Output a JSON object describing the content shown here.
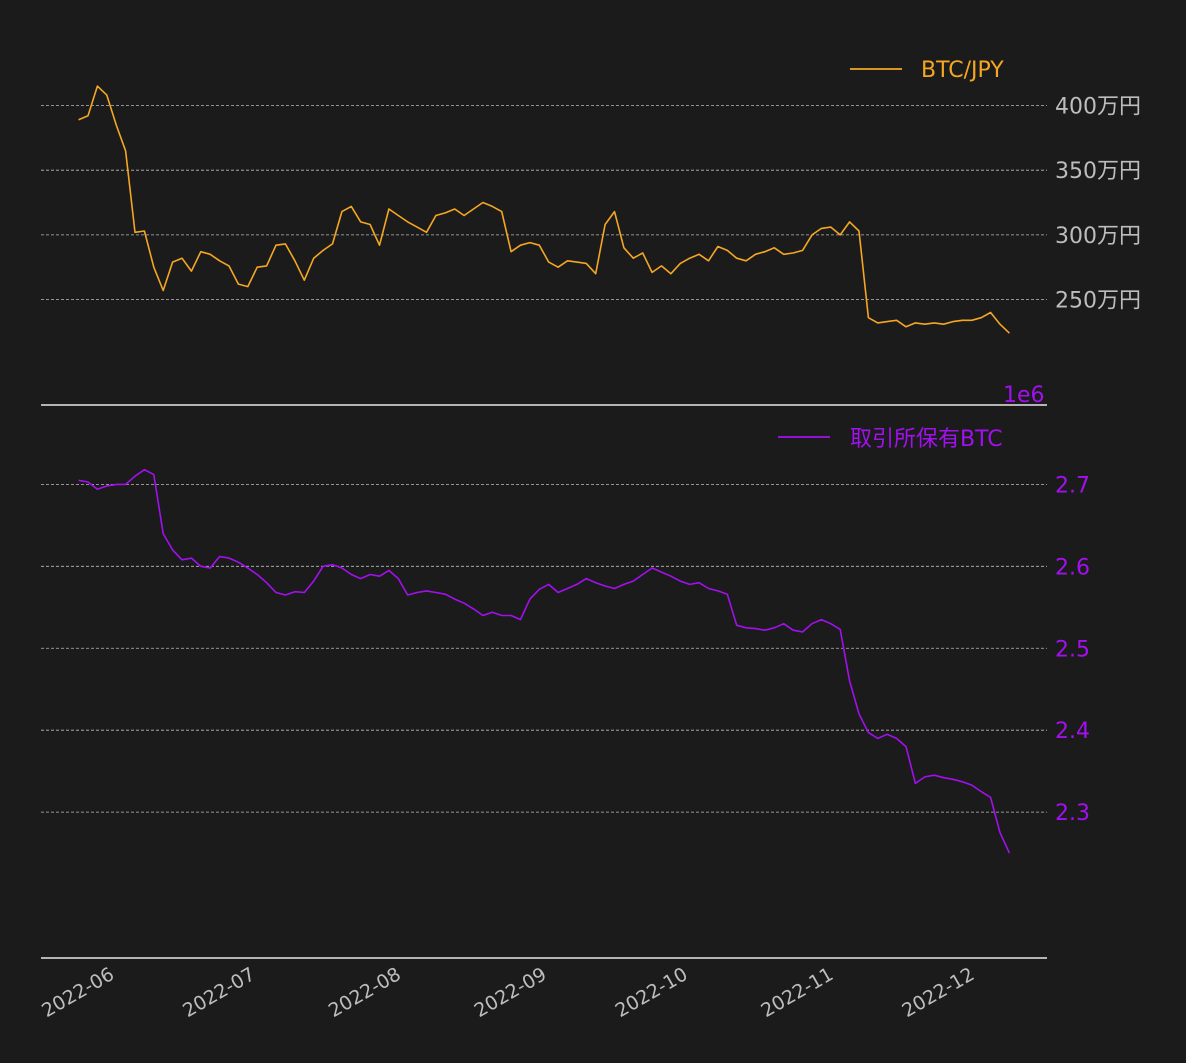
{
  "colors": {
    "background": "#1b1b1b",
    "price_line": "#f5a623",
    "holdings_line": "#a310f0",
    "tick_gray": "#bdbdbd"
  },
  "chart_data": [
    {
      "type": "line",
      "panel": "top",
      "series": [
        {
          "name": "BTC/JPY",
          "color": "#f5a623"
        }
      ],
      "y_tick_labels": [
        "400万円",
        "350万円",
        "300万円",
        "250万円"
      ],
      "y_ticks": [
        4000000,
        3500000,
        3000000,
        2500000
      ],
      "ylim": [
        2180000,
        4220000
      ],
      "x": [
        "2022-05-28",
        "2022-05-30",
        "2022-06-01",
        "2022-06-03",
        "2022-06-05",
        "2022-06-07",
        "2022-06-09",
        "2022-06-11",
        "2022-06-13",
        "2022-06-15",
        "2022-06-17",
        "2022-06-19",
        "2022-06-21",
        "2022-06-23",
        "2022-06-25",
        "2022-06-27",
        "2022-06-29",
        "2022-07-01",
        "2022-07-03",
        "2022-07-05",
        "2022-07-07",
        "2022-07-09",
        "2022-07-11",
        "2022-07-13",
        "2022-07-15",
        "2022-07-17",
        "2022-07-19",
        "2022-07-21",
        "2022-07-23",
        "2022-07-25",
        "2022-07-27",
        "2022-07-29",
        "2022-07-31",
        "2022-08-02",
        "2022-08-04",
        "2022-08-06",
        "2022-08-08",
        "2022-08-10",
        "2022-08-12",
        "2022-08-14",
        "2022-08-16",
        "2022-08-18",
        "2022-08-20",
        "2022-08-22",
        "2022-08-24",
        "2022-08-26",
        "2022-08-28",
        "2022-08-30",
        "2022-09-01",
        "2022-09-03",
        "2022-09-05",
        "2022-09-07",
        "2022-09-09",
        "2022-09-11",
        "2022-09-13",
        "2022-09-15",
        "2022-09-17",
        "2022-09-19",
        "2022-09-21",
        "2022-09-23",
        "2022-09-25",
        "2022-09-27",
        "2022-09-29",
        "2022-10-01",
        "2022-10-03",
        "2022-10-05",
        "2022-10-07",
        "2022-10-09",
        "2022-10-11",
        "2022-10-13",
        "2022-10-15",
        "2022-10-17",
        "2022-10-19",
        "2022-10-21",
        "2022-10-23",
        "2022-10-25",
        "2022-10-27",
        "2022-10-29",
        "2022-10-31",
        "2022-11-02",
        "2022-11-04",
        "2022-11-06",
        "2022-11-08",
        "2022-11-10",
        "2022-11-12",
        "2022-11-14",
        "2022-11-16",
        "2022-11-18",
        "2022-11-20",
        "2022-11-22",
        "2022-11-24",
        "2022-11-26",
        "2022-11-28",
        "2022-11-30",
        "2022-12-02",
        "2022-12-04",
        "2022-12-06",
        "2022-12-08",
        "2022-12-10",
        "2022-12-12"
      ],
      "y": [
        3890000,
        3920000,
        4150000,
        4080000,
        3850000,
        3650000,
        3020000,
        3030000,
        2750000,
        2570000,
        2790000,
        2820000,
        2720000,
        2870000,
        2850000,
        2800000,
        2760000,
        2620000,
        2600000,
        2750000,
        2760000,
        2920000,
        2930000,
        2800000,
        2650000,
        2820000,
        2880000,
        2930000,
        3180000,
        3220000,
        3100000,
        3080000,
        2920000,
        3200000,
        3150000,
        3100000,
        3060000,
        3020000,
        3150000,
        3170000,
        3200000,
        3150000,
        3200000,
        3250000,
        3220000,
        3180000,
        2870000,
        2920000,
        2940000,
        2920000,
        2790000,
        2750000,
        2800000,
        2790000,
        2780000,
        2700000,
        3080000,
        3180000,
        2900000,
        2820000,
        2860000,
        2710000,
        2760000,
        2700000,
        2780000,
        2820000,
        2850000,
        2800000,
        2910000,
        2880000,
        2820000,
        2800000,
        2850000,
        2870000,
        2900000,
        2850000,
        2860000,
        2880000,
        3000000,
        3050000,
        3060000,
        3000000,
        3100000,
        3030000,
        2360000,
        2320000,
        2330000,
        2340000,
        2290000,
        2320000,
        2310000,
        2320000,
        2310000,
        2330000,
        2340000,
        2340000,
        2360000,
        2400000,
        2310000,
        2240000
      ],
      "multiplier_label": "1e6"
    },
    {
      "type": "line",
      "panel": "bottom",
      "series": [
        {
          "name": "取引所保有BTC",
          "color": "#a310f0"
        }
      ],
      "y_tick_labels": [
        "2.7",
        "2.6",
        "2.5",
        "2.4",
        "2.3"
      ],
      "y_ticks": [
        2.7,
        2.6,
        2.5,
        2.4,
        2.3
      ],
      "ylim": [
        2.222,
        2.742
      ],
      "x_tick_labels": [
        "2022-06",
        "2022-07",
        "2022-08",
        "2022-09",
        "2022-10",
        "2022-11",
        "2022-12"
      ],
      "x_ticks": [
        "2022-06-01",
        "2022-07-01",
        "2022-08-01",
        "2022-09-01",
        "2022-10-01",
        "2022-11-01",
        "2022-12-01"
      ],
      "xlim": [
        "2022-05-20",
        "2022-12-20"
      ],
      "x": [
        "2022-05-28",
        "2022-05-30",
        "2022-06-01",
        "2022-06-03",
        "2022-06-05",
        "2022-06-07",
        "2022-06-09",
        "2022-06-11",
        "2022-06-13",
        "2022-06-15",
        "2022-06-17",
        "2022-06-19",
        "2022-06-21",
        "2022-06-23",
        "2022-06-25",
        "2022-06-27",
        "2022-06-29",
        "2022-07-01",
        "2022-07-03",
        "2022-07-05",
        "2022-07-07",
        "2022-07-09",
        "2022-07-11",
        "2022-07-13",
        "2022-07-15",
        "2022-07-17",
        "2022-07-19",
        "2022-07-21",
        "2022-07-23",
        "2022-07-25",
        "2022-07-27",
        "2022-07-29",
        "2022-07-31",
        "2022-08-02",
        "2022-08-04",
        "2022-08-06",
        "2022-08-08",
        "2022-08-10",
        "2022-08-12",
        "2022-08-14",
        "2022-08-16",
        "2022-08-18",
        "2022-08-20",
        "2022-08-22",
        "2022-08-24",
        "2022-08-26",
        "2022-08-28",
        "2022-08-30",
        "2022-09-01",
        "2022-09-03",
        "2022-09-05",
        "2022-09-07",
        "2022-09-09",
        "2022-09-11",
        "2022-09-13",
        "2022-09-15",
        "2022-09-17",
        "2022-09-19",
        "2022-09-21",
        "2022-09-23",
        "2022-09-25",
        "2022-09-27",
        "2022-09-29",
        "2022-10-01",
        "2022-10-03",
        "2022-10-05",
        "2022-10-07",
        "2022-10-09",
        "2022-10-11",
        "2022-10-13",
        "2022-10-15",
        "2022-10-17",
        "2022-10-19",
        "2022-10-21",
        "2022-10-23",
        "2022-10-25",
        "2022-10-27",
        "2022-10-29",
        "2022-10-31",
        "2022-11-02",
        "2022-11-04",
        "2022-11-06",
        "2022-11-08",
        "2022-11-10",
        "2022-11-12",
        "2022-11-14",
        "2022-11-16",
        "2022-11-18",
        "2022-11-20",
        "2022-11-22",
        "2022-11-24",
        "2022-11-26",
        "2022-11-28",
        "2022-11-30",
        "2022-12-02",
        "2022-12-04",
        "2022-12-06",
        "2022-12-08",
        "2022-12-10",
        "2022-12-12"
      ],
      "y": [
        2.705,
        2.703,
        2.694,
        2.698,
        2.7,
        2.7,
        2.71,
        2.718,
        2.712,
        2.64,
        2.62,
        2.608,
        2.61,
        2.6,
        2.598,
        2.612,
        2.61,
        2.605,
        2.598,
        2.59,
        2.58,
        2.568,
        2.565,
        2.569,
        2.568,
        2.582,
        2.6,
        2.602,
        2.598,
        2.59,
        2.585,
        2.59,
        2.588,
        2.595,
        2.585,
        2.565,
        2.568,
        2.57,
        2.568,
        2.566,
        2.56,
        2.555,
        2.548,
        2.54,
        2.544,
        2.54,
        2.54,
        2.535,
        2.56,
        2.572,
        2.578,
        2.568,
        2.573,
        2.578,
        2.585,
        2.58,
        2.576,
        2.573,
        2.578,
        2.582,
        2.59,
        2.598,
        2.593,
        2.588,
        2.582,
        2.578,
        2.58,
        2.573,
        2.57,
        2.566,
        2.528,
        2.525,
        2.524,
        2.522,
        2.525,
        2.53,
        2.522,
        2.52,
        2.53,
        2.535,
        2.53,
        2.523,
        2.46,
        2.42,
        2.397,
        2.39,
        2.395,
        2.39,
        2.38,
        2.335,
        2.343,
        2.345,
        2.342,
        2.34,
        2.337,
        2.333,
        2.325,
        2.318,
        2.275,
        2.25
      ]
    }
  ]
}
